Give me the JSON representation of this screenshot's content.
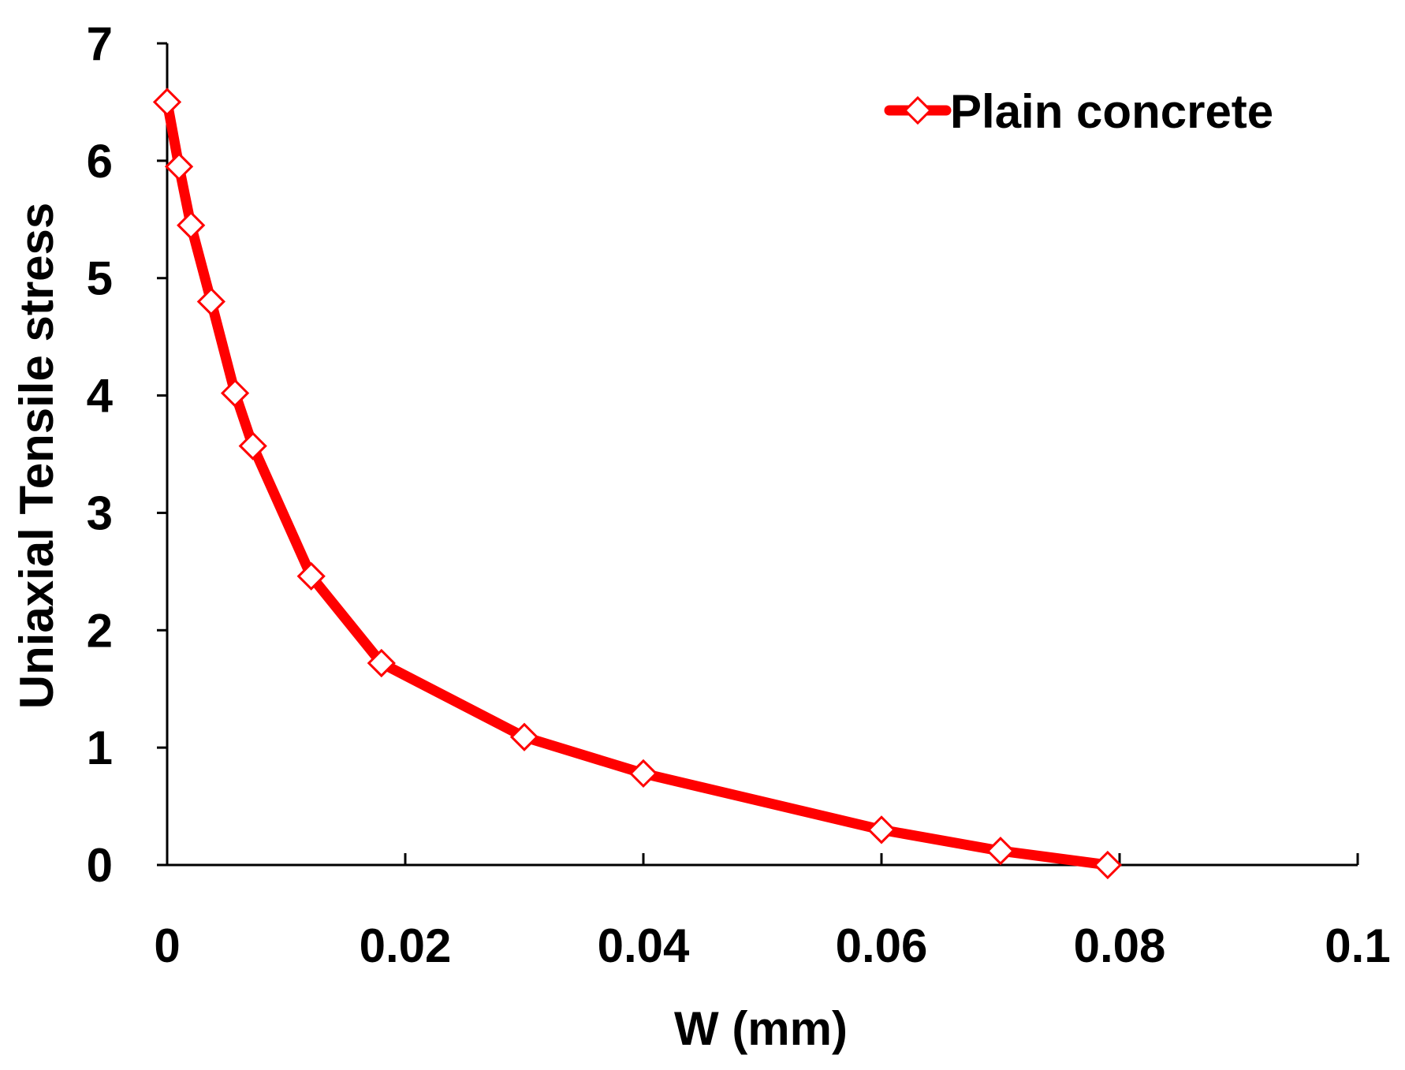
{
  "chart_data": {
    "type": "line",
    "title": "",
    "xlabel": "W (mm)",
    "ylabel": "Uniaxial Tensile stress",
    "xlim": [
      0,
      0.1
    ],
    "ylim": [
      0,
      7
    ],
    "xticks": [
      0,
      0.02,
      0.04,
      0.06,
      0.08,
      0.1
    ],
    "xtick_labels": [
      "0",
      "0.02",
      "0.04",
      "0.06",
      "0.08",
      "0.1"
    ],
    "yticks": [
      0,
      1,
      2,
      3,
      4,
      5,
      6,
      7
    ],
    "ytick_labels": [
      "0",
      "1",
      "2",
      "3",
      "4",
      "5",
      "6",
      "7"
    ],
    "grid": false,
    "legend_position": "top-right",
    "series": [
      {
        "name": "Plain concrete",
        "color": "#ff0000",
        "marker": "diamond-open",
        "x": [
          0,
          0.001,
          0.002,
          0.0037,
          0.0057,
          0.0072,
          0.0121,
          0.018,
          0.03,
          0.04,
          0.06,
          0.07,
          0.079
        ],
        "y": [
          6.5,
          5.95,
          5.45,
          4.8,
          4.02,
          3.57,
          2.46,
          1.72,
          1.09,
          0.78,
          0.3,
          0.12,
          0.0
        ]
      }
    ]
  }
}
